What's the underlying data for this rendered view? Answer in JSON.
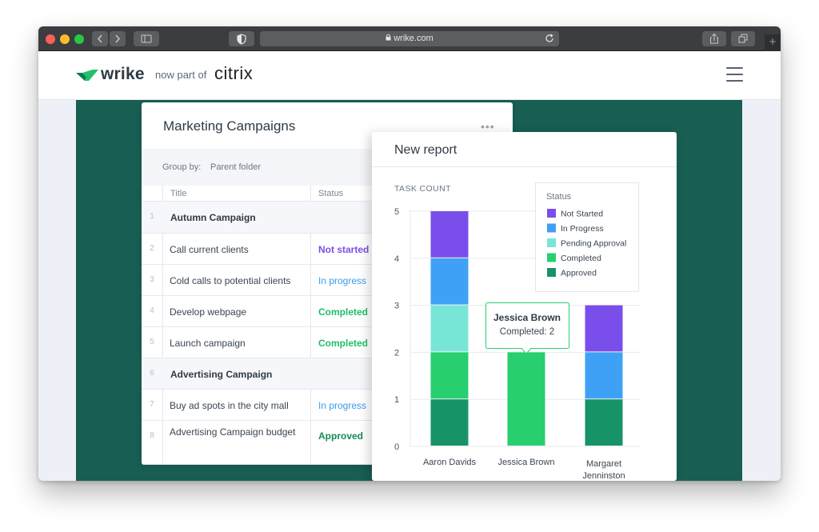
{
  "browser": {
    "url": "wrike.com"
  },
  "header": {
    "brand": "wrike",
    "partner_text": "now part of",
    "partner_brand": "citrix"
  },
  "table": {
    "title": "Marketing Campaigns",
    "group_by_label": "Group by:",
    "group_by_value": "Parent folder",
    "columns": [
      "Title",
      "Status"
    ],
    "rows": [
      {
        "num": "1",
        "title": "Autumn Campaign",
        "status": "",
        "group": true
      },
      {
        "num": "2",
        "title": "Call current clients",
        "status": "Not started"
      },
      {
        "num": "3",
        "title": "Cold calls to potential clients",
        "status": "In progress"
      },
      {
        "num": "4",
        "title": "Develop webpage",
        "status": "Completed"
      },
      {
        "num": "5",
        "title": "Launch campaign",
        "status": "Completed"
      },
      {
        "num": "6",
        "title": "Advertising Campaign",
        "status": "",
        "group": true
      },
      {
        "num": "7",
        "title": "Buy ad spots in the city mall",
        "status": "In progress"
      },
      {
        "num": "8",
        "title": "Advertising Campaign budget",
        "status": "Approved"
      }
    ],
    "status_colors": {
      "Not started": "#7b4ee8",
      "In progress": "#3b9be8",
      "Completed": "#1fbf6a",
      "Approved": "#168a57"
    }
  },
  "report": {
    "title": "New report",
    "tooltip": {
      "title": "Jessica Brown",
      "text": "Completed: 2"
    }
  },
  "chart_data": {
    "type": "bar",
    "stacked": true,
    "ylabel": "TASK COUNT",
    "ylim": [
      0,
      5
    ],
    "yticks": [
      0,
      1,
      2,
      3,
      4,
      5
    ],
    "grid": true,
    "legend_title": "Status",
    "legend_position": "top-right",
    "categories": [
      "Aaron Davids",
      "Jessica Brown",
      "Margaret Jenninston"
    ],
    "series": [
      {
        "name": "Approved",
        "color": "#169467",
        "values": [
          1,
          0,
          1
        ]
      },
      {
        "name": "Completed",
        "color": "#27cf6f",
        "values": [
          1,
          2,
          0
        ]
      },
      {
        "name": "Pending Approval",
        "color": "#78e6d7",
        "values": [
          1,
          0,
          0
        ]
      },
      {
        "name": "In Progress",
        "color": "#3fa1f6",
        "values": [
          1,
          0,
          1
        ]
      },
      {
        "name": "Not Started",
        "color": "#7a4eea",
        "values": [
          1,
          0,
          1
        ]
      }
    ]
  }
}
